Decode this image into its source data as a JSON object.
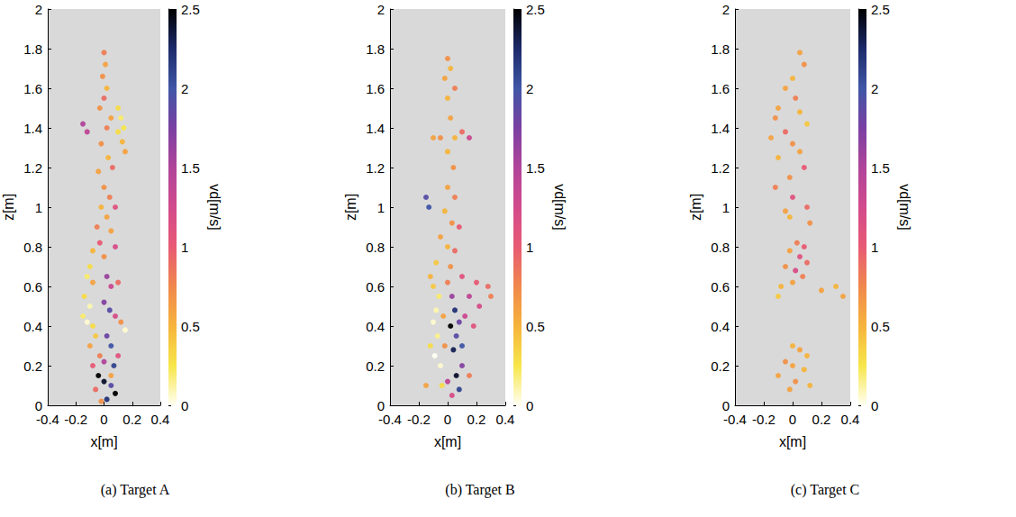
{
  "chart_data": [
    {
      "type": "scatter",
      "title": "(a) Target A",
      "x_label": "x[m]",
      "y_label": "z[m]",
      "xlim": [
        -0.4,
        0.4
      ],
      "xticks": [
        -0.4,
        -0.2,
        0,
        0.2,
        0.4
      ],
      "ylim": [
        0,
        2
      ],
      "yticks": [
        0,
        0.2,
        0.4,
        0.6,
        0.8,
        1,
        1.2,
        1.4,
        1.6,
        1.8,
        2
      ],
      "grid": false,
      "marker": "circle",
      "x": [
        0,
        0.01,
        -0.01,
        0.02,
        0,
        -0.03,
        0.1,
        0.12,
        0.14,
        0.1,
        0.13,
        0.15,
        0.05,
        0.02,
        -0.15,
        -0.12,
        -0.02,
        0.03,
        0.06,
        -0.04,
        0,
        0.04,
        -0.02,
        0.08,
        0.02,
        -0.05,
        0.05,
        -0.03,
        0.08,
        -0.08,
        0,
        -0.1,
        -0.12,
        -0.08,
        0.02,
        0.05,
        0.1,
        -0.14,
        -0.1,
        -0.15,
        -0.12,
        -0.08,
        0,
        0.04,
        0.08,
        0.12,
        0.15,
        -0.06,
        0.02,
        -0.1,
        0.05,
        -0.03,
        0,
        0.07,
        -0.04,
        0,
        0.05,
        -0.06,
        0.08,
        0.02,
        -0.02,
        0.05,
        -0.08,
        0.1
      ],
      "values": [
        1.78,
        1.72,
        1.66,
        1.6,
        1.55,
        1.5,
        1.5,
        1.45,
        1.4,
        1.38,
        1.33,
        1.28,
        1.45,
        1.4,
        1.42,
        1.38,
        1.32,
        1.25,
        1.2,
        1.18,
        1.1,
        1.05,
        1,
        1,
        0.95,
        0.9,
        0.88,
        0.82,
        0.8,
        0.78,
        0.75,
        0.7,
        0.65,
        0.62,
        0.65,
        0.6,
        0.62,
        0.55,
        0.5,
        0.45,
        0.42,
        0.4,
        0.52,
        0.48,
        0.45,
        0.42,
        0.38,
        0.35,
        0.35,
        0.3,
        0.3,
        0.25,
        0.22,
        0.2,
        0.15,
        0.12,
        0.1,
        0.08,
        0.06,
        0.03,
        0.02,
        0.15,
        0.2,
        0.25
      ],
      "vd": [
        0.8,
        0.6,
        0.7,
        0.5,
        0.9,
        0.7,
        0.3,
        0.2,
        0.25,
        0.3,
        0.5,
        0.6,
        0.6,
        0.8,
        1.5,
        1.4,
        0.7,
        0.5,
        0.9,
        0.6,
        0.7,
        0.8,
        0.5,
        1.1,
        0.6,
        0.8,
        0.6,
        1,
        1.2,
        0.5,
        0.7,
        0.3,
        0.2,
        0.6,
        1.6,
        1.3,
        0.9,
        0.3,
        0.1,
        0.2,
        0.05,
        0.3,
        1.7,
        1.9,
        1.2,
        0.7,
        0.05,
        0.4,
        1.8,
        0.6,
        2,
        0.8,
        1.5,
        2.1,
        2.5,
        2.4,
        1.9,
        0.9,
        2.5,
        2.2,
        0.7,
        0.6,
        1,
        1.1
      ],
      "colorbar": {
        "label": "vd[m/s]",
        "lim": [
          0,
          2.5
        ],
        "ticks": [
          0,
          0.5,
          1,
          1.5,
          2,
          2.5
        ],
        "colors": [
          "#fffff2",
          "#f7e64a",
          "#f6b43c",
          "#f0884c",
          "#e85a74",
          "#d24a8c",
          "#b0449a",
          "#7a40a2",
          "#3f56a6",
          "#1c2a6a",
          "#000000"
        ]
      }
    },
    {
      "type": "scatter",
      "title": "(b) Target B",
      "x_label": "x[m]",
      "y_label": "z[m]",
      "xlim": [
        -0.4,
        0.4
      ],
      "xticks": [
        -0.4,
        -0.2,
        0,
        0.2,
        0.4
      ],
      "ylim": [
        0,
        2
      ],
      "yticks": [
        0,
        0.2,
        0.4,
        0.6,
        0.8,
        1,
        1.2,
        1.4,
        1.6,
        1.8,
        2
      ],
      "grid": false,
      "marker": "circle",
      "x": [
        0,
        0.02,
        -0.02,
        0.05,
        0,
        -0.1,
        -0.05,
        0.05,
        0.1,
        0.15,
        0.02,
        0,
        0.04,
        -0.15,
        -0.13,
        0,
        0.05,
        -0.02,
        0.03,
        0.08,
        -0.05,
        0,
        0.05,
        -0.08,
        0.02,
        -0.12,
        0.1,
        0.2,
        0.28,
        0.3,
        0.22,
        0.15,
        -0.1,
        -0.06,
        -0.08,
        -0.1,
        -0.07,
        -0.12,
        -0.09,
        -0.05,
        0.03,
        0.05,
        0.08,
        0.02,
        0.06,
        0.1,
        0.04,
        0.12,
        0.18,
        0.1,
        0.06,
        0,
        -0.04,
        0.08,
        0.03,
        -0.02,
        0.15,
        -0.15,
        0,
        -0.03
      ],
      "values": [
        1.75,
        1.7,
        1.65,
        1.6,
        1.55,
        1.35,
        1.35,
        1.35,
        1.38,
        1.35,
        1.45,
        1.28,
        1.2,
        1.05,
        1,
        1.1,
        1.05,
        0.98,
        0.92,
        0.9,
        0.85,
        0.8,
        0.78,
        0.72,
        0.7,
        0.65,
        0.65,
        0.62,
        0.6,
        0.55,
        0.5,
        0.55,
        0.6,
        0.55,
        0.48,
        0.42,
        0.35,
        0.3,
        0.25,
        0.2,
        0.55,
        0.48,
        0.42,
        0.4,
        0.35,
        0.3,
        0.28,
        0.45,
        0.4,
        0.2,
        0.15,
        0.12,
        0.1,
        0.08,
        0.05,
        0.3,
        0.15,
        0.1,
        0.62,
        0.45
      ],
      "vd": [
        0.7,
        0.5,
        0.6,
        0.8,
        0.5,
        0.6,
        0.7,
        0.5,
        0.9,
        1.3,
        0.6,
        0.5,
        0.7,
        1.9,
        2,
        0.6,
        0.8,
        0.5,
        0.7,
        1,
        0.6,
        0.5,
        0.9,
        0.4,
        0.7,
        0.5,
        1.1,
        1,
        0.9,
        0.8,
        1.2,
        1.4,
        0.4,
        0.2,
        0.1,
        0.05,
        0.15,
        0.3,
        0,
        0.05,
        1.6,
        2.2,
        1.8,
        2.5,
        1.9,
        2,
        2.3,
        1.3,
        1.1,
        1.7,
        2.4,
        1.4,
        0.3,
        2.1,
        1.2,
        0.7,
        0.8,
        0.6,
        0.8,
        0.6
      ],
      "colorbar": {
        "label": "vd[m/s]",
        "lim": [
          0,
          2.5
        ],
        "ticks": [
          0,
          0.5,
          1,
          1.5,
          2,
          2.5
        ],
        "colors": [
          "#fffff2",
          "#f7e64a",
          "#f6b43c",
          "#f0884c",
          "#e85a74",
          "#d24a8c",
          "#b0449a",
          "#7a40a2",
          "#3f56a6",
          "#1c2a6a",
          "#000000"
        ]
      }
    },
    {
      "type": "scatter",
      "title": "(c) Target C",
      "x_label": "x[m]",
      "y_label": "z[m]",
      "xlim": [
        -0.4,
        0.4
      ],
      "xticks": [
        -0.4,
        -0.2,
        0,
        0.2,
        0.4
      ],
      "ylim": [
        0,
        2
      ],
      "yticks": [
        0,
        0.2,
        0.4,
        0.6,
        0.8,
        1,
        1.2,
        1.4,
        1.6,
        1.8,
        2
      ],
      "grid": false,
      "marker": "circle",
      "x": [
        0.05,
        0.08,
        0,
        -0.05,
        0.02,
        -0.1,
        0.05,
        -0.12,
        0.1,
        -0.05,
        -0.15,
        0,
        0.05,
        -0.1,
        0.08,
        -0.02,
        -0.12,
        0,
        0.1,
        -0.05,
        0.12,
        -0.02,
        0.03,
        0.08,
        -0.02,
        0.05,
        0.1,
        -0.05,
        0.02,
        0.07,
        0,
        -0.08,
        0.2,
        0.3,
        0.35,
        -0.1,
        0,
        0.05,
        0.1,
        -0.05,
        0,
        0.08,
        -0.1,
        0.02,
        0.12,
        -0.02
      ],
      "values": [
        1.78,
        1.72,
        1.65,
        1.6,
        1.55,
        1.5,
        1.48,
        1.45,
        1.42,
        1.38,
        1.35,
        1.32,
        1.28,
        1.25,
        1.2,
        1.15,
        1.1,
        1.05,
        1,
        0.98,
        0.92,
        0.95,
        0.82,
        0.8,
        0.78,
        0.75,
        0.72,
        0.7,
        0.68,
        0.65,
        0.62,
        0.6,
        0.58,
        0.6,
        0.55,
        0.55,
        0.3,
        0.28,
        0.25,
        0.22,
        0.2,
        0.18,
        0.15,
        0.12,
        0.1,
        0.08
      ],
      "vd": [
        0.6,
        0.7,
        0.5,
        0.6,
        0.8,
        0.6,
        0.5,
        0.7,
        0.4,
        0.9,
        0.6,
        0.7,
        0.6,
        0.5,
        1,
        0.7,
        0.8,
        1.1,
        0.9,
        0.6,
        0.7,
        0.5,
        0.8,
        1,
        0.6,
        1.1,
        0.9,
        0.7,
        1.2,
        0.8,
        0.6,
        0.5,
        0.6,
        0.5,
        0.6,
        0.4,
        0.5,
        0.6,
        0.5,
        0.7,
        0.6,
        0.5,
        0.6,
        0.7,
        0.5,
        0.6
      ],
      "colorbar": {
        "label": "vd[m/s]",
        "lim": [
          0,
          2.5
        ],
        "ticks": [
          0,
          0.5,
          1,
          1.5,
          2,
          2.5
        ],
        "colors": [
          "#fffff2",
          "#f7e64a",
          "#f6b43c",
          "#f0884c",
          "#e85a74",
          "#d24a8c",
          "#b0449a",
          "#7a40a2",
          "#3f56a6",
          "#1c2a6a",
          "#000000"
        ]
      }
    }
  ]
}
